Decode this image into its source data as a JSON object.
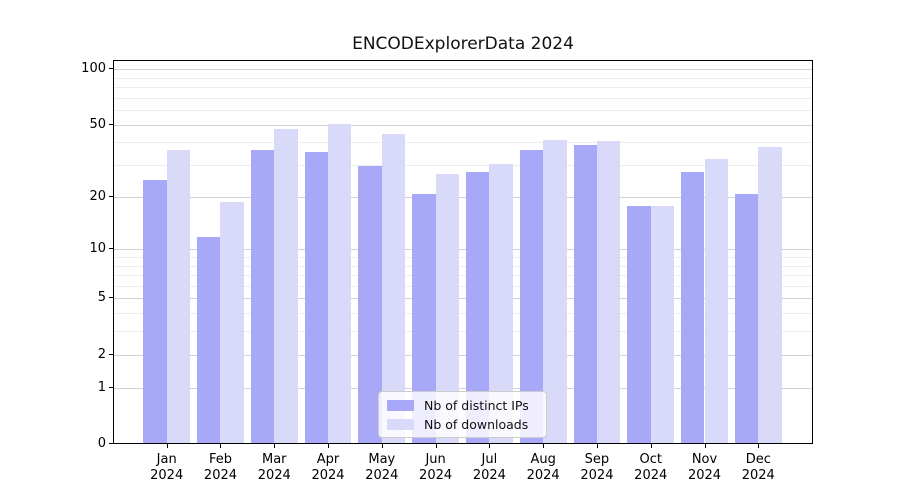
{
  "chart_data": {
    "type": "bar",
    "title": "ENCODExplorerData 2024",
    "categories": [
      "Jan",
      "Feb",
      "Mar",
      "Apr",
      "May",
      "Jun",
      "Jul",
      "Aug",
      "Sep",
      "Oct",
      "Nov",
      "Dec"
    ],
    "category_year": "2024",
    "series": [
      {
        "name": "Nb of distinct IPs",
        "color": "#a8a8f8",
        "values": [
          25,
          12,
          37,
          36,
          30,
          21,
          28,
          37,
          39,
          18,
          28,
          21
        ]
      },
      {
        "name": "Nb of downloads",
        "color": "#d9d9f9",
        "values": [
          37,
          19,
          48,
          51,
          45,
          27,
          31,
          42,
          41,
          18,
          33,
          38
        ]
      }
    ],
    "xlabel": "",
    "ylabel": "",
    "y_scale": "log1p",
    "y_axis_ticks": [
      100,
      50,
      20,
      10,
      5,
      2,
      1,
      0
    ],
    "y_axis_minor_ticks": [
      90,
      80,
      70,
      60,
      40,
      30,
      9,
      8,
      7,
      6,
      4,
      3
    ],
    "ylim": [
      0,
      112
    ],
    "grid": "on",
    "legend_position": "lower center"
  },
  "legend": {
    "entry_ips": "Nb of distinct IPs",
    "entry_downloads": "Nb of downloads"
  }
}
